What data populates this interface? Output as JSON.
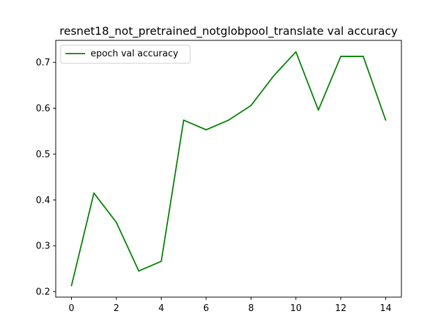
{
  "chart_data": {
    "type": "line",
    "title": "resnet18_not_pretrained_notglobpool_translate val accuracy",
    "xlabel": "",
    "ylabel": "",
    "xlim": [
      -0.7,
      14.7
    ],
    "ylim": [
      0.188,
      0.748
    ],
    "x_ticks": [
      0,
      2,
      4,
      6,
      8,
      10,
      12,
      14
    ],
    "y_ticks": [
      0.2,
      0.3,
      0.4,
      0.5,
      0.6,
      0.7
    ],
    "x_tick_labels": [
      "0",
      "2",
      "4",
      "6",
      "8",
      "10",
      "12",
      "14"
    ],
    "y_tick_labels": [
      "0.2",
      "0.3",
      "0.4",
      "0.5",
      "0.6",
      "0.7"
    ],
    "grid": false,
    "legend_position": "top-left",
    "series": [
      {
        "name": "epoch val accuracy",
        "color": "#008000",
        "x": [
          0,
          1,
          2,
          3,
          4,
          5,
          6,
          7,
          8,
          9,
          10,
          11,
          12,
          13,
          14
        ],
        "y": [
          0.213,
          0.415,
          0.351,
          0.245,
          0.266,
          0.574,
          0.553,
          0.574,
          0.606,
          0.67,
          0.723,
          0.596,
          0.713,
          0.713,
          0.574
        ]
      }
    ]
  }
}
